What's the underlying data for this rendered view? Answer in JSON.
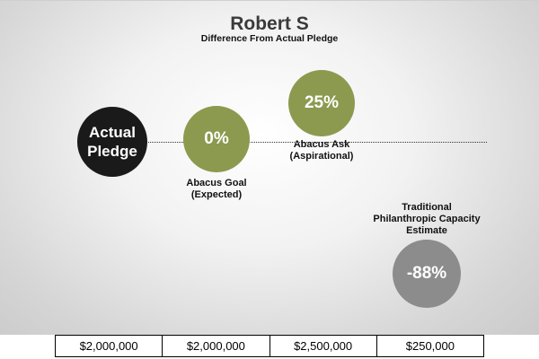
{
  "chart_data": {
    "type": "bubble",
    "title": "Robert S",
    "subtitle": "Difference From Actual Pledge",
    "baseline_label": "Actual Pledge",
    "points": [
      {
        "label": "Abacus Goal (Expected)",
        "label_lines": [
          "Abacus Goal",
          "(Expected)"
        ],
        "value_text": "0%",
        "value": 0,
        "color": "#8b9a4e"
      },
      {
        "label": "Abacus Ask (Aspirational)",
        "label_lines": [
          "Abacus Ask",
          "(Aspirational)"
        ],
        "value_text": "25%",
        "value": 25,
        "color": "#8b9a4e"
      },
      {
        "label": "Traditional Philanthropic Capacity Estimate",
        "label_lines": [
          "Traditional",
          "Philanthropic Capacity",
          "Estimate"
        ],
        "value_text": "-88%",
        "value": -88,
        "color": "#8c8c8c"
      }
    ],
    "baseline_color": "#1a1a1a",
    "amounts": [
      "$2,000,000",
      "$2,000,000",
      "$2,500,000",
      "$250,000"
    ]
  }
}
